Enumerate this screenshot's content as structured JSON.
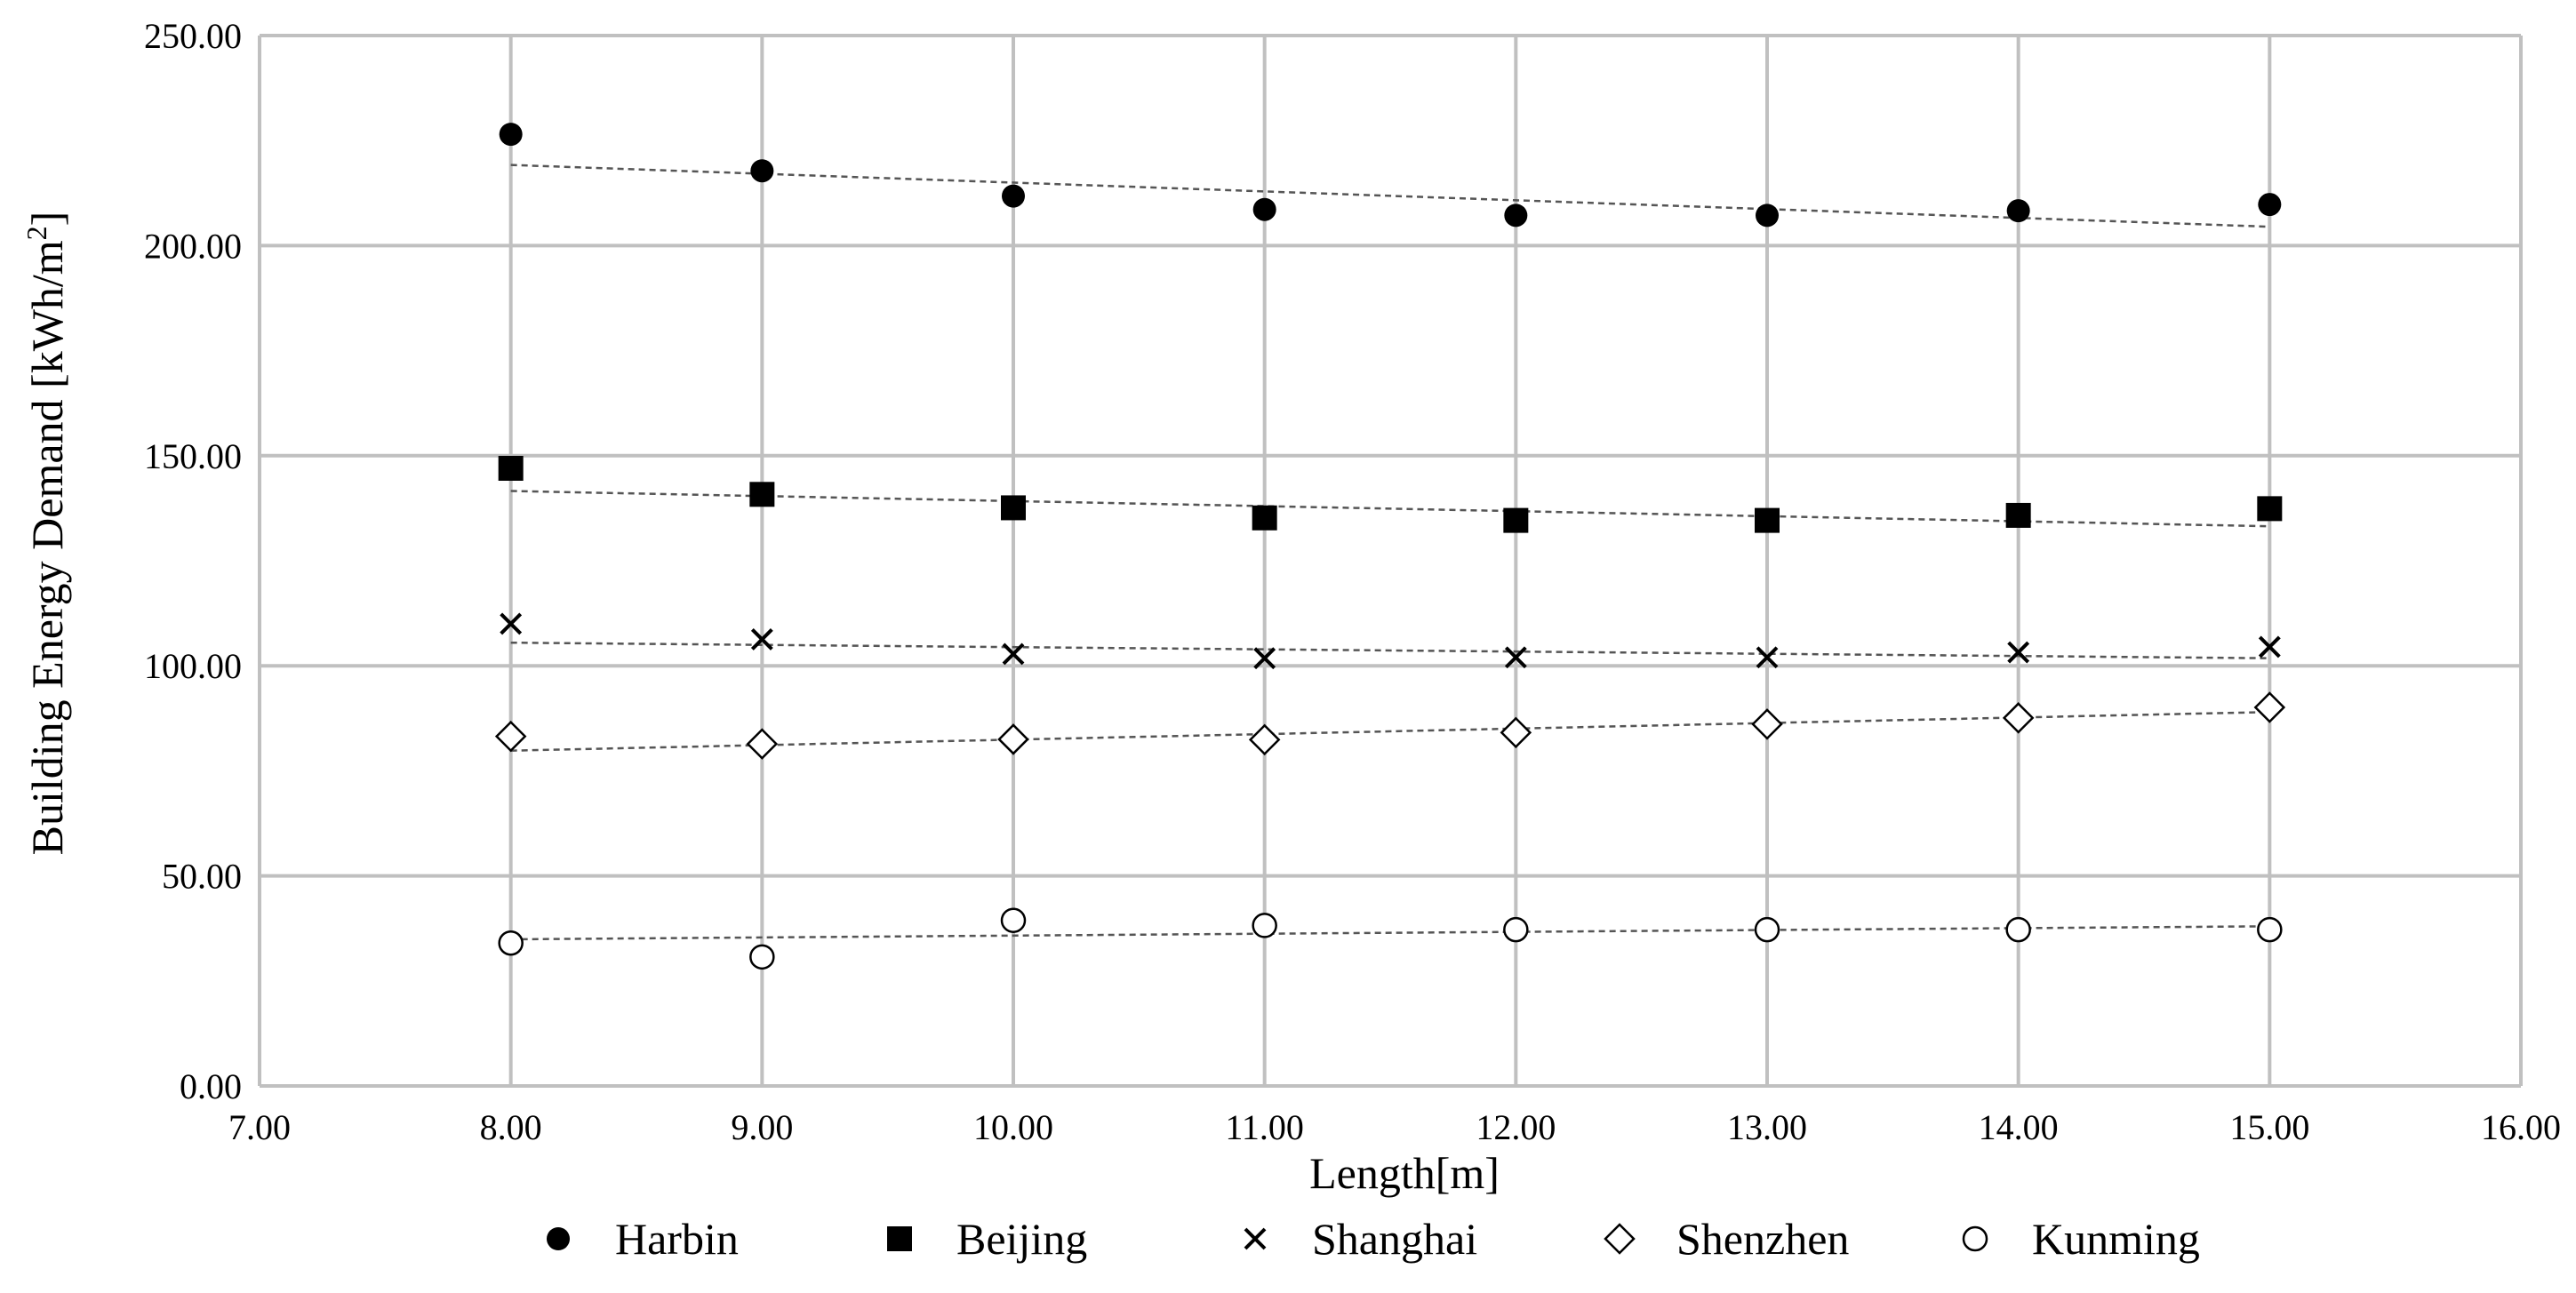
{
  "chart_data": {
    "type": "scatter",
    "xlabel": "Length[m]",
    "ylabel": "Building Energy Demand [kWh/m",
    "ylabel_sup": "2",
    "ylabel_end": "]",
    "xlim": [
      7,
      16
    ],
    "ylim": [
      0,
      250
    ],
    "x_ticks": [
      "7.00",
      "8.00",
      "9.00",
      "10.00",
      "11.00",
      "12.00",
      "13.00",
      "14.00",
      "15.00",
      "16.00"
    ],
    "y_ticks": [
      "0.00",
      "50.00",
      "100.00",
      "150.00",
      "200.00",
      "250.00"
    ],
    "grid": true,
    "legend_position": "bottom",
    "x": [
      8,
      9,
      10,
      11,
      12,
      13,
      14,
      15
    ],
    "series": [
      {
        "name": "Harbin",
        "marker": "filled-circle",
        "values": [
          226.5,
          217.8,
          211.8,
          208.6,
          207.2,
          207.2,
          208.3,
          209.8
        ],
        "trend": [
          219.2,
          204.5
        ]
      },
      {
        "name": "Beijing",
        "marker": "filled-square",
        "values": [
          147.0,
          140.8,
          137.6,
          135.2,
          134.6,
          134.6,
          135.8,
          137.4
        ],
        "trend": [
          141.6,
          133.2
        ]
      },
      {
        "name": "Shanghai",
        "marker": "cross",
        "values": [
          110.0,
          106.3,
          102.8,
          101.8,
          102.0,
          102.0,
          103.2,
          104.5
        ],
        "trend": [
          105.5,
          101.8
        ]
      },
      {
        "name": "Shenzhen",
        "marker": "open-diamond",
        "values": [
          83.2,
          81.4,
          82.5,
          82.4,
          84.1,
          86.1,
          87.6,
          90.1
        ],
        "trend": [
          79.8,
          89.0
        ]
      },
      {
        "name": "Kunming",
        "marker": "open-circle",
        "values": [
          34.0,
          30.7,
          39.4,
          38.2,
          37.2,
          37.2,
          37.2,
          37.2
        ],
        "trend": [
          34.9,
          38.0
        ]
      }
    ]
  }
}
